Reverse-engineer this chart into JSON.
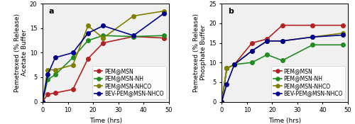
{
  "panel_a": {
    "title": "a",
    "xlabel": "Time (hrs)",
    "ylabel": "Pemetrexed (% Release)\nAcetate Buffer",
    "ylim": [
      0,
      20
    ],
    "yticks": [
      0,
      5,
      10,
      15,
      20
    ],
    "xlim": [
      0,
      50
    ],
    "xticks": [
      0,
      10,
      20,
      30,
      40,
      50
    ],
    "series": {
      "PEM@MSN": {
        "x": [
          0,
          2,
          5,
          12,
          18,
          24,
          36,
          48
        ],
        "y": [
          0,
          1.5,
          1.8,
          2.5,
          8.8,
          12.0,
          13.3,
          13.0
        ],
        "color": "#b22222",
        "marker": "o"
      },
      "PEM@MSN-NH": {
        "x": [
          0,
          2,
          5,
          12,
          18,
          24,
          36,
          48
        ],
        "y": [
          0,
          4.5,
          5.5,
          9.0,
          12.5,
          13.5,
          13.3,
          13.5
        ],
        "color": "#228B22",
        "marker": "o"
      },
      "PEM@MSN-NHCO": {
        "x": [
          0,
          2,
          5,
          12,
          18,
          24,
          36,
          48
        ],
        "y": [
          0,
          6.5,
          6.5,
          7.5,
          15.5,
          13.0,
          17.5,
          18.5
        ],
        "color": "#808000",
        "marker": "o"
      },
      "BEV-PEM@MSN-NHCO": {
        "x": [
          0,
          2,
          5,
          12,
          18,
          24,
          36,
          48
        ],
        "y": [
          0,
          5.5,
          9.0,
          10.0,
          14.0,
          15.5,
          13.5,
          18.0
        ],
        "color": "#00008B",
        "marker": "o"
      }
    }
  },
  "panel_b": {
    "title": "b",
    "xlabel": "Time (hrs)",
    "ylabel": "Pemetrexed (% Release)\nPhosphate Buffer",
    "ylim": [
      0,
      25
    ],
    "yticks": [
      0,
      5,
      10,
      15,
      20,
      25
    ],
    "xlim": [
      0,
      50
    ],
    "xticks": [
      0,
      10,
      20,
      30,
      40,
      50
    ],
    "series": {
      "PEM@MSN": {
        "x": [
          0,
          2,
          5,
          12,
          18,
          24,
          36,
          48
        ],
        "y": [
          0,
          8.5,
          9.5,
          15.0,
          16.0,
          19.5,
          19.5,
          19.5
        ],
        "color": "#b22222",
        "marker": "o"
      },
      "PEM@MSN-NH": {
        "x": [
          0,
          2,
          5,
          12,
          18,
          24,
          36,
          48
        ],
        "y": [
          0,
          8.5,
          9.5,
          10.0,
          12.0,
          10.5,
          14.5,
          14.5
        ],
        "color": "#228B22",
        "marker": "o"
      },
      "PEM@MSN-NHCO": {
        "x": [
          0,
          2,
          5,
          12,
          18,
          24,
          36,
          48
        ],
        "y": [
          0,
          8.5,
          9.5,
          13.0,
          15.5,
          15.5,
          16.5,
          17.5
        ],
        "color": "#808000",
        "marker": "o"
      },
      "BEV-PEM@MSN-NHCO": {
        "x": [
          0,
          2,
          5,
          12,
          18,
          24,
          36,
          48
        ],
        "y": [
          0,
          4.5,
          9.5,
          13.0,
          15.5,
          15.5,
          16.5,
          17.0
        ],
        "color": "#00008B",
        "marker": "o"
      }
    }
  },
  "legend_order": [
    "PEM@MSN",
    "PEM@MSN-NH",
    "PEM@MSN-NHCO",
    "BEV-PEM@MSN-NHCO"
  ],
  "markersize": 4,
  "linewidth": 1.2,
  "fontsize_label": 6.5,
  "fontsize_tick": 6,
  "fontsize_legend": 5.5,
  "fontsize_title": 8,
  "background_color": "#f0f0f0"
}
